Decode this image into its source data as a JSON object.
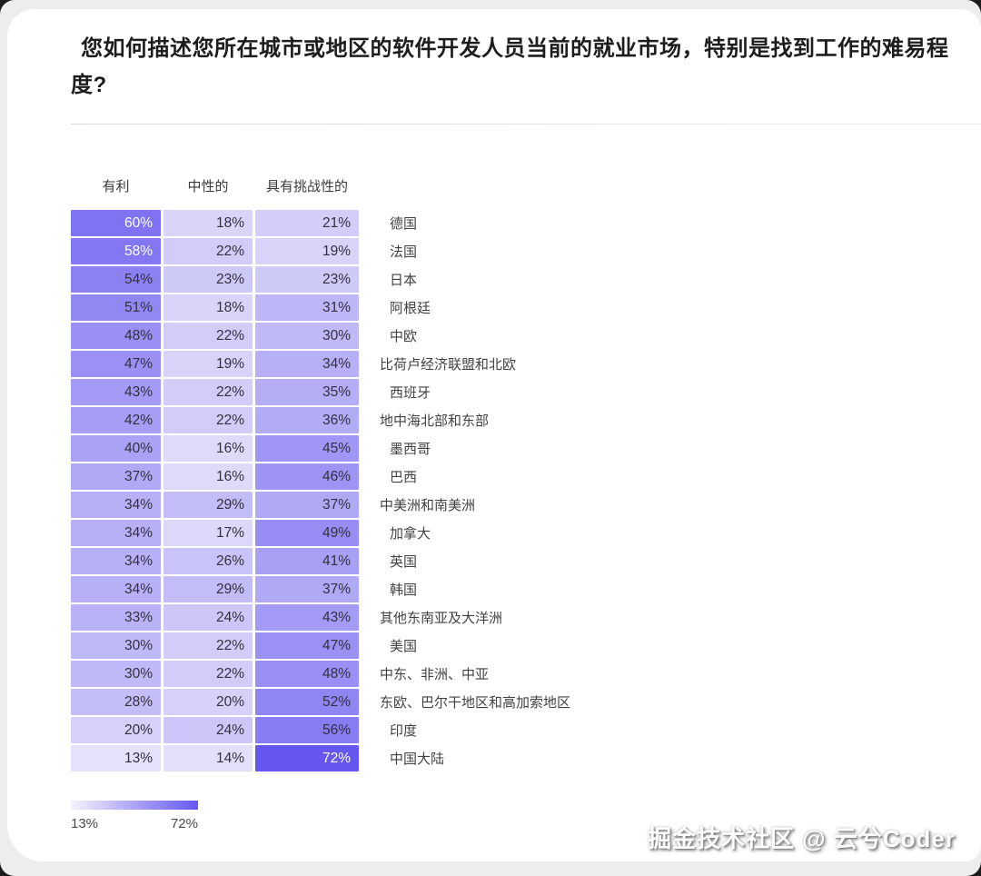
{
  "page": {
    "watermark": "掘金技术社区 @ 云兮Coder"
  },
  "chart_data": {
    "type": "heatmap",
    "title": "您如何描述您所在城市或地区的软件开发人员当前的就业市场，特别是找到工作的难易程度?",
    "unit": "%",
    "columns": [
      "有利",
      "中性的",
      "具有挑战性的"
    ],
    "rows": [
      {
        "label": "德国",
        "values": [
          60,
          18,
          21
        ],
        "indent": true
      },
      {
        "label": "法国",
        "values": [
          58,
          22,
          19
        ],
        "indent": true
      },
      {
        "label": "日本",
        "values": [
          54,
          23,
          23
        ],
        "indent": true
      },
      {
        "label": "阿根廷",
        "values": [
          51,
          18,
          31
        ],
        "indent": true
      },
      {
        "label": "中欧",
        "values": [
          48,
          22,
          30
        ],
        "indent": true
      },
      {
        "label": "比荷卢经济联盟和北欧",
        "values": [
          47,
          19,
          34
        ],
        "indent": false
      },
      {
        "label": "西班牙",
        "values": [
          43,
          22,
          35
        ],
        "indent": true
      },
      {
        "label": "地中海北部和东部",
        "values": [
          42,
          22,
          36
        ],
        "indent": false
      },
      {
        "label": "墨西哥",
        "values": [
          40,
          16,
          45
        ],
        "indent": true
      },
      {
        "label": "巴西",
        "values": [
          37,
          16,
          46
        ],
        "indent": true
      },
      {
        "label": "中美洲和南美洲",
        "values": [
          34,
          29,
          37
        ],
        "indent": false
      },
      {
        "label": "加拿大",
        "values": [
          34,
          17,
          49
        ],
        "indent": true
      },
      {
        "label": "英国",
        "values": [
          34,
          26,
          41
        ],
        "indent": true
      },
      {
        "label": "韩国",
        "values": [
          34,
          29,
          37
        ],
        "indent": true
      },
      {
        "label": "其他东南亚及大洋洲",
        "values": [
          33,
          24,
          43
        ],
        "indent": false
      },
      {
        "label": "美国",
        "values": [
          30,
          22,
          47
        ],
        "indent": true
      },
      {
        "label": "中东、非洲、中亚",
        "values": [
          30,
          22,
          48
        ],
        "indent": false
      },
      {
        "label": "东欧、巴尔干地区和高加索地区",
        "values": [
          28,
          20,
          52
        ],
        "indent": false
      },
      {
        "label": "印度",
        "values": [
          20,
          24,
          56
        ],
        "indent": true
      },
      {
        "label": "中国大陆",
        "values": [
          13,
          14,
          72
        ],
        "indent": true
      }
    ],
    "scale": {
      "min": 13,
      "max": 72,
      "min_label": "13%",
      "max_label": "72%",
      "min_color": "#e4e1fa",
      "max_color": "#6557f0"
    }
  }
}
